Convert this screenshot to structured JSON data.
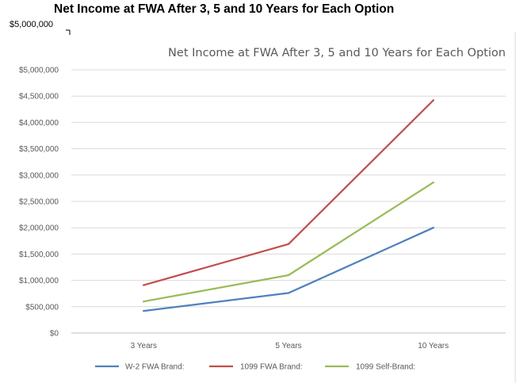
{
  "outer": {
    "title": "Net Income at FWA After 3, 5 and 10 Years for Each Option",
    "y_top_label": "$5,000,000"
  },
  "chart_data": {
    "type": "line",
    "title": "Net Income at FWA After 3, 5 and 10 Years for Each Option",
    "categories": [
      "3 Years",
      "5 Years",
      "10 Years"
    ],
    "yticks": [
      "$0",
      "$500,000",
      "$1,000,000",
      "$1,500,000",
      "$2,000,000",
      "$2,500,000",
      "$3,000,000",
      "$3,500,000",
      "$4,000,000",
      "$4,500,000",
      "$5,000,000"
    ],
    "ylim": [
      0,
      5000000
    ],
    "grid": true,
    "legend_position": "bottom",
    "series": [
      {
        "name": "W-2 FWA Brand:",
        "color": "#4F81BD",
        "values": [
          420000,
          760000,
          2000000
        ]
      },
      {
        "name": "1099 FWA Brand:",
        "color": "#C0504D",
        "values": [
          910000,
          1690000,
          4420000
        ]
      },
      {
        "name": "1099 Self-Brand:",
        "color": "#9BBB59",
        "values": [
          600000,
          1100000,
          2860000
        ]
      }
    ]
  }
}
